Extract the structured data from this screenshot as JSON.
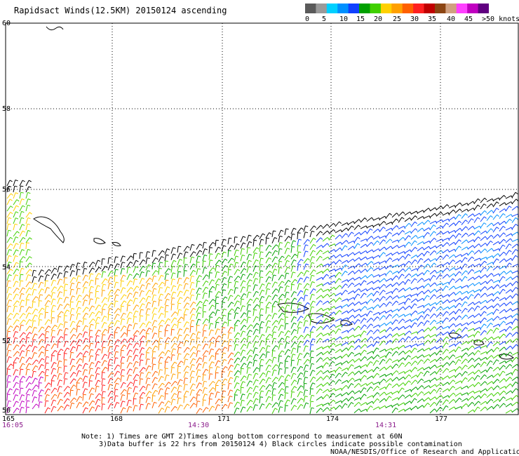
{
  "title": "Rapidsact Winds(12.5KM) 20150124 ascending",
  "colorbar": {
    "colors": [
      "#5a5a5a",
      "#9a9a9a",
      "#00d0ff",
      "#0090ff",
      "#1040ff",
      "#00a000",
      "#40d000",
      "#ffd000",
      "#ffa000",
      "#ff6000",
      "#ff2020",
      "#c00000",
      "#8b4513",
      "#d0a080",
      "#ff40ff",
      "#c000c0",
      "#600080"
    ],
    "labels": [
      "0",
      "5",
      "10",
      "15",
      "20",
      "25",
      "30",
      "35",
      "40",
      "45",
      ">50 knots"
    ]
  },
  "lat_labels": [
    "60",
    "58",
    "56",
    "54",
    "52",
    "50"
  ],
  "lon_labels": [
    "165",
    "168",
    "171",
    "174",
    "177"
  ],
  "time_labels": [
    "16:05",
    "14:30",
    "14:31"
  ],
  "notes": {
    "line1": "Note: 1) Times are GMT 2)Times along bottom correspond to measurement at 60N",
    "line2": "3)Data buffer is 22 hrs from 20150124 4) Black circles indicate possible contamination",
    "credit": "NOAA/NESDIS/Office of Research and Applications"
  }
}
